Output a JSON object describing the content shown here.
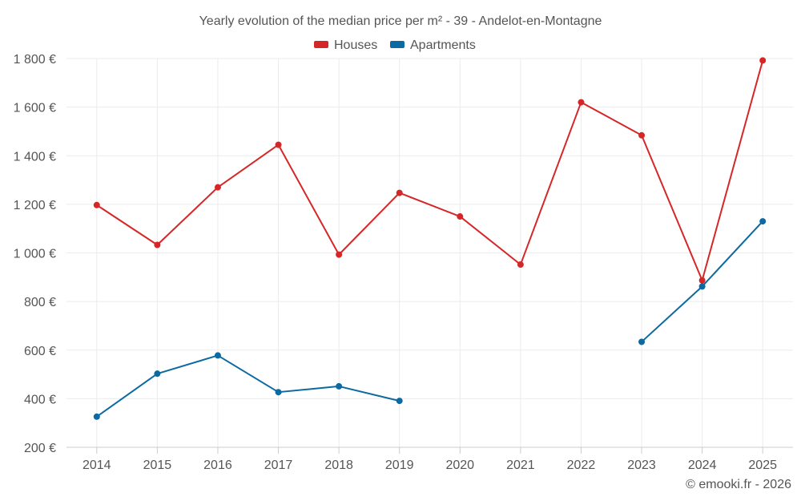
{
  "chart_data": {
    "type": "line",
    "title": "Yearly evolution of the median price per m² - 39 - Andelot-en-Montagne",
    "categories": [
      "2014",
      "2015",
      "2016",
      "2017",
      "2018",
      "2019",
      "2020",
      "2021",
      "2022",
      "2023",
      "2024",
      "2025"
    ],
    "ylim": [
      200,
      1800
    ],
    "yticks": [
      200,
      400,
      600,
      800,
      1000,
      1200,
      1400,
      1600,
      1800
    ],
    "ytick_labels": [
      "200 €",
      "400 €",
      "600 €",
      "800 €",
      "1 000 €",
      "1 200 €",
      "1 400 €",
      "1 600 €",
      "1 800 €"
    ],
    "xlabel": "",
    "ylabel": "",
    "legend_position": "top-center",
    "grid": true,
    "series": [
      {
        "name": "Houses",
        "color": "#d62728",
        "values": [
          1197,
          1033,
          1270,
          1445,
          993,
          1247,
          1150,
          952,
          1620,
          1484,
          887,
          1792
        ]
      },
      {
        "name": "Apartments",
        "color": "#0a6aa1",
        "values": [
          326,
          503,
          578,
          427,
          451,
          391,
          null,
          null,
          null,
          634,
          862,
          1130
        ]
      }
    ]
  },
  "credit": "© emooki.fr - 2026"
}
